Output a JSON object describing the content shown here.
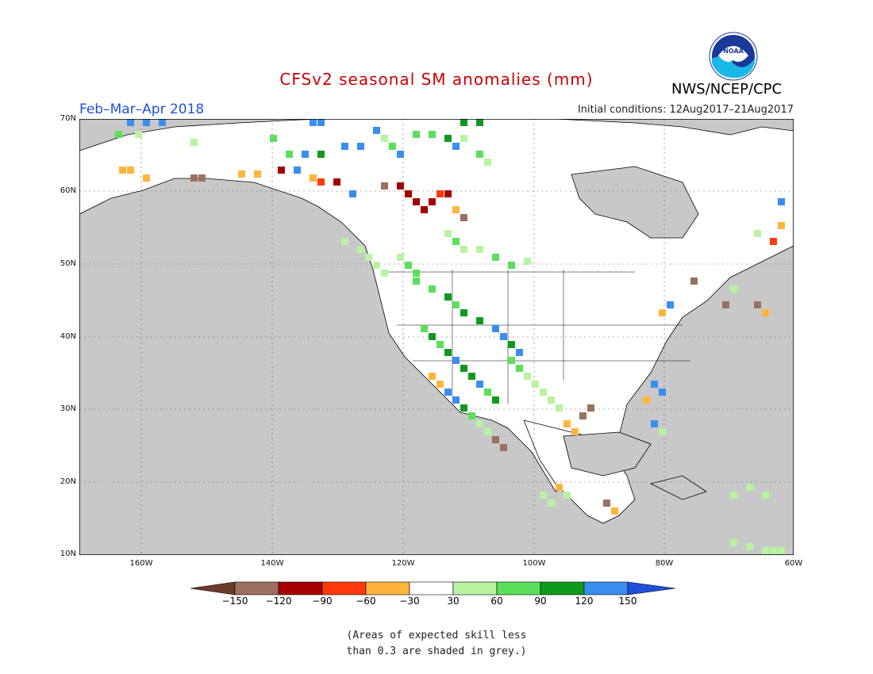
{
  "title": "CFSv2 seasonal SM anomalies (mm)",
  "season": "Feb–Mar–Apr 2018",
  "initial_conditions": "Initial conditions: 12Aug2017–21Aug2017",
  "agency": "NWS/NCEP/CPC",
  "logo_text": "NOAA",
  "lat_labels": [
    "70N",
    "60N",
    "50N",
    "40N",
    "30N",
    "20N",
    "10N"
  ],
  "lon_labels": [
    "160W",
    "140W",
    "120W",
    "100W",
    "80W",
    "60W"
  ],
  "colorbar": {
    "labels": [
      "−150",
      "−120",
      "−90",
      "−60",
      "−30",
      "30",
      "60",
      "90",
      "120",
      "150"
    ],
    "colors": [
      "#6b3b2a",
      "#9a7060",
      "#a50000",
      "#ff3a0a",
      "#ffb43c",
      "#ffffff",
      "#b8f4a0",
      "#5ae05a",
      "#0f9a1e",
      "#3a8ef0",
      "#1e50d8"
    ]
  },
  "footnote_line1": "(Areas of expected skill less",
  "footnote_line2": "than 0.3 are shaded in grey.)",
  "colors": {
    "land_grey": "#c8c8c8",
    "ocean": "#c8c8c8",
    "title": "#cc0000",
    "season": "#1f4fe0"
  }
}
